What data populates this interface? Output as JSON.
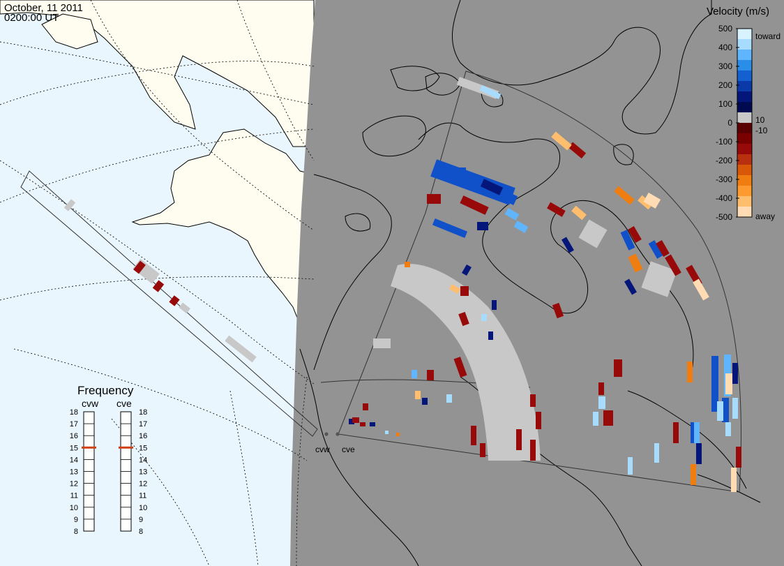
{
  "header": {
    "date": "October, 11 2011",
    "time": "0200:00 UT"
  },
  "velocity_legend": {
    "title": "Velocity (m/s)",
    "ticks": [
      "500",
      "400",
      "300",
      "200",
      "100",
      "0",
      "-100",
      "-200",
      "-300",
      "-400",
      "-500"
    ],
    "side_labels": {
      "toward": "toward",
      "ten": "10",
      "minus_ten": "-10",
      "away": "away"
    },
    "color_stops": [
      "#d9f2ff",
      "#a8dcff",
      "#5fb6ff",
      "#2a8de8",
      "#1560d0",
      "#0a3aa8",
      "#04167a",
      "#000a50",
      "#c8c8c8",
      "#5a0000",
      "#7a0000",
      "#980a0a",
      "#b83010",
      "#d85808",
      "#ef7d10",
      "#ff9a30",
      "#ffbe6e",
      "#ffdcb4"
    ]
  },
  "frequency_panel": {
    "title": "Frequency",
    "radars": [
      "cvw",
      "cve"
    ],
    "scale": [
      "18",
      "17",
      "16",
      "15",
      "14",
      "13",
      "12",
      "11",
      "10",
      "9",
      "8"
    ],
    "selected_mhz": {
      "cvw": 15,
      "cve": 15
    }
  },
  "radar_sites": {
    "west": "cvw",
    "east": "cve"
  },
  "colors": {
    "land": "#fefdf0",
    "ocean": "#eaf6fd",
    "night": "#939393",
    "ground_scatter": "#c8c8c8",
    "marker": "#d04010"
  }
}
